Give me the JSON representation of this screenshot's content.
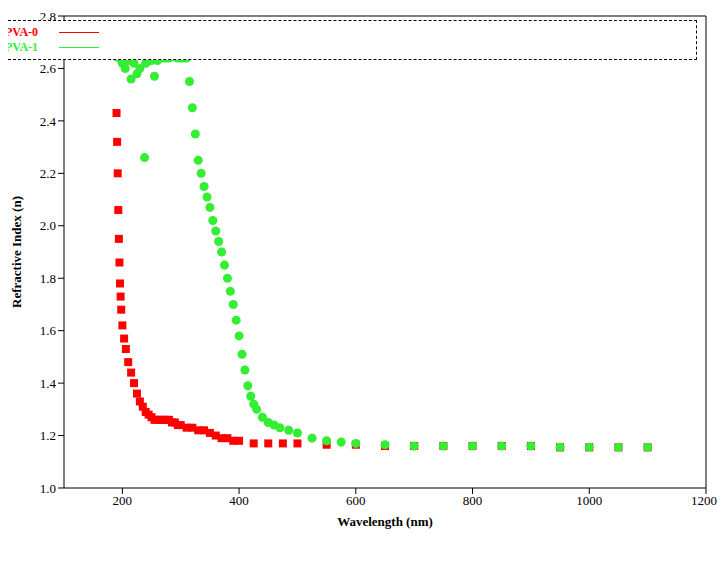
{
  "chart_data": {
    "type": "scatter",
    "x_label": "Wavelength (nm)",
    "y_label": "Refractive Index (n)",
    "xlim": [
      100,
      1200
    ],
    "xticks": [
      200,
      400,
      600,
      800,
      1000,
      1200
    ],
    "ylim": [
      1,
      2.8
    ],
    "yticks": [
      {
        "value": 1,
        "label": "1.0"
      },
      1.2,
      1.4,
      1.6,
      1.8,
      {
        "value": 2,
        "label": "2.0"
      },
      2.2,
      2.4,
      2.6,
      2.8
    ],
    "legend": "upper right",
    "grid": false,
    "series": [
      {
        "name": "PVA-0",
        "color": "#ff0000",
        "marker": "square",
        "x": [
          190,
          191,
          192,
          193,
          194,
          195,
          196,
          197,
          198,
          200,
          203,
          206,
          210,
          215,
          220,
          225,
          230,
          235,
          240,
          245,
          250,
          255,
          260,
          265,
          270,
          275,
          280,
          285,
          290,
          295,
          300,
          310,
          320,
          330,
          340,
          350,
          360,
          370,
          380,
          390,
          400,
          425,
          450,
          475,
          500,
          550,
          600,
          650,
          700,
          750,
          800,
          850,
          900,
          950,
          1000,
          1050,
          1100
        ],
        "values": [
          2.43,
          2.32,
          2.2,
          2.06,
          1.95,
          1.86,
          1.78,
          1.73,
          1.68,
          1.62,
          1.57,
          1.53,
          1.48,
          1.44,
          1.4,
          1.36,
          1.33,
          1.31,
          1.29,
          1.28,
          1.27,
          1.26,
          1.26,
          1.26,
          1.26,
          1.26,
          1.26,
          1.25,
          1.25,
          1.24,
          1.24,
          1.23,
          1.23,
          1.22,
          1.22,
          1.21,
          1.2,
          1.19,
          1.19,
          1.18,
          1.18,
          1.17,
          1.17,
          1.17,
          1.17,
          1.165,
          1.165,
          1.16,
          1.16,
          1.16,
          1.16,
          1.16,
          1.16,
          1.155,
          1.155,
          1.155,
          1.155
        ]
      },
      {
        "name": "PVA-1",
        "color": "#33ee33",
        "marker": "circle",
        "x": [
          190,
          195,
          200,
          205,
          210,
          215,
          220,
          225,
          230,
          238,
          240,
          245,
          250,
          255,
          260,
          265,
          270,
          275,
          280,
          285,
          290,
          295,
          300,
          305,
          310,
          315,
          320,
          325,
          330,
          335,
          340,
          345,
          350,
          355,
          360,
          365,
          370,
          375,
          380,
          385,
          390,
          395,
          400,
          405,
          410,
          415,
          420,
          425,
          430,
          440,
          450,
          460,
          470,
          485,
          500,
          525,
          550,
          575,
          600,
          650,
          700,
          750,
          800,
          850,
          900,
          950,
          1000,
          1050,
          1100
        ],
        "values": [
          2.645,
          2.64,
          2.62,
          2.6,
          2.63,
          2.56,
          2.62,
          2.58,
          2.6,
          2.26,
          2.62,
          2.63,
          2.63,
          2.57,
          2.63,
          2.64,
          2.64,
          2.64,
          2.64,
          2.645,
          2.645,
          2.64,
          2.64,
          2.64,
          2.64,
          2.55,
          2.45,
          2.35,
          2.25,
          2.2,
          2.15,
          2.11,
          2.07,
          2.02,
          1.98,
          1.94,
          1.9,
          1.85,
          1.8,
          1.75,
          1.7,
          1.64,
          1.58,
          1.51,
          1.45,
          1.39,
          1.35,
          1.32,
          1.3,
          1.27,
          1.25,
          1.24,
          1.23,
          1.22,
          1.21,
          1.19,
          1.18,
          1.175,
          1.17,
          1.165,
          1.16,
          1.16,
          1.16,
          1.16,
          1.16,
          1.155,
          1.155,
          1.155,
          1.155
        ]
      }
    ]
  }
}
